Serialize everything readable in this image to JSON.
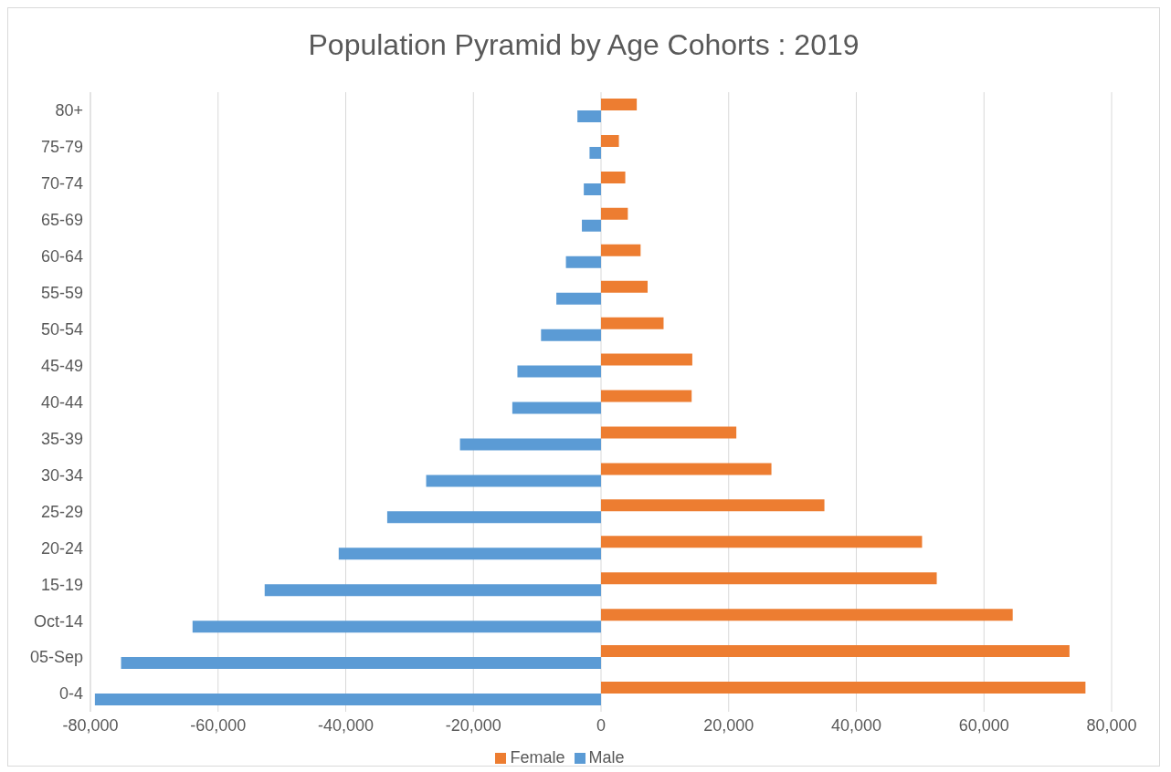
{
  "chart_data": {
    "type": "bar",
    "orientation": "horizontal",
    "title": "Population Pyramid by Age Cohorts : 2019",
    "categories": [
      "80+",
      "75-79",
      "70-74",
      "65-69",
      "60-64",
      "55-59",
      "50-54",
      "45-49",
      "40-44",
      "35-39",
      "30-34",
      "25-29",
      "20-24",
      "15-19",
      "Oct-14",
      "05-Sep",
      "0-4"
    ],
    "series": [
      {
        "name": "Female",
        "color": "#ed7d31",
        "values": [
          5600,
          2800,
          3800,
          4200,
          6200,
          7300,
          9800,
          14300,
          14200,
          21200,
          26700,
          35000,
          50300,
          52600,
          64500,
          73400,
          75900
        ]
      },
      {
        "name": "Male",
        "color": "#5b9bd5",
        "values": [
          -3700,
          -1800,
          -2700,
          -3000,
          -5500,
          -7000,
          -9400,
          -13100,
          -13900,
          -22100,
          -27400,
          -33500,
          -41100,
          -52700,
          -64000,
          -75200,
          -79300
        ]
      }
    ],
    "xlim": [
      -80000,
      80000
    ],
    "xticks": [
      {
        "value": -80000,
        "label": "-80,000"
      },
      {
        "value": -60000,
        "label": "-60,000"
      },
      {
        "value": -40000,
        "label": "-40,000"
      },
      {
        "value": -20000,
        "label": "-20,000"
      },
      0,
      {
        "value": 20000,
        "label": "20,000"
      },
      {
        "value": 40000,
        "label": "40,000"
      },
      {
        "value": 60000,
        "label": "60,000"
      },
      {
        "value": 80000,
        "label": "80,000"
      }
    ],
    "grid": "x",
    "legend": "bottom"
  }
}
